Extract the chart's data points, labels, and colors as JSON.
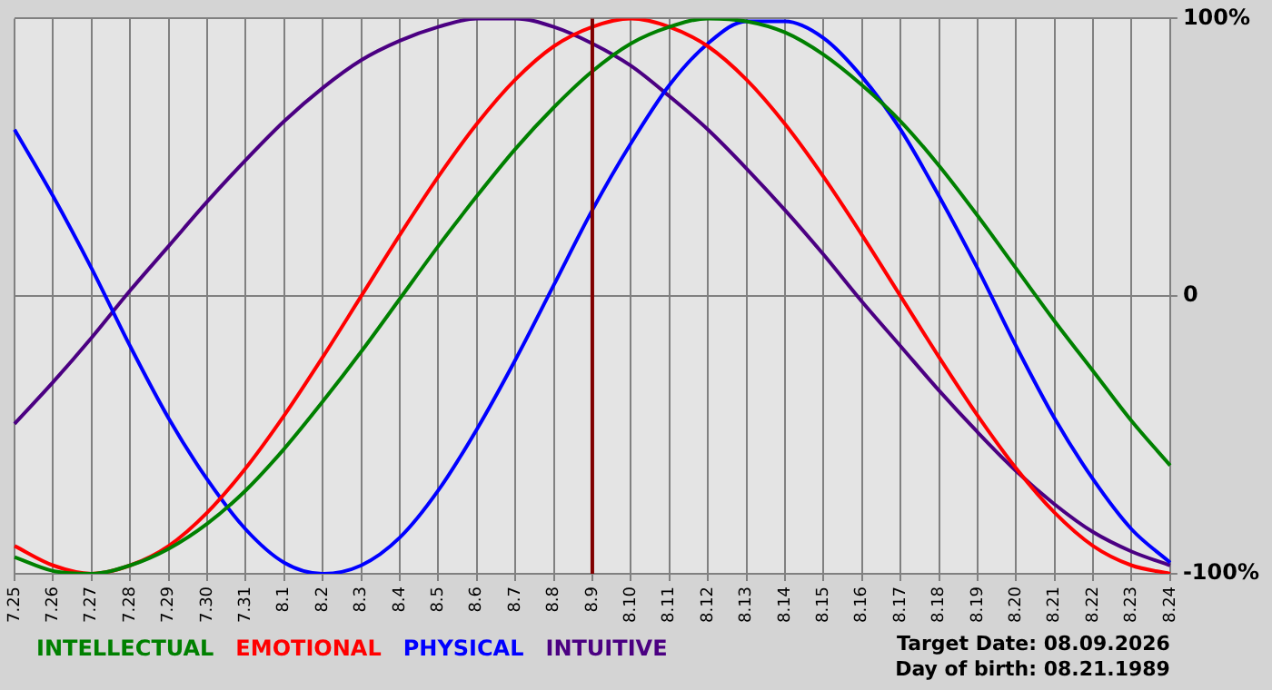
{
  "chart_data": {
    "type": "line",
    "categories": [
      "7.25",
      "7.26",
      "7.27",
      "7.28",
      "7.29",
      "7.30",
      "7.31",
      "8.1",
      "8.2",
      "8.3",
      "8.4",
      "8.5",
      "8.6",
      "8.7",
      "8.8",
      "8.9",
      "8.10",
      "8.11",
      "8.12",
      "8.13",
      "8.14",
      "8.15",
      "8.16",
      "8.17",
      "8.18",
      "8.19",
      "8.20",
      "8.21",
      "8.22",
      "8.23",
      "8.24"
    ],
    "series": [
      {
        "name": "INTELLECTUAL",
        "color": "#008000",
        "values": [
          -94,
          -99,
          -100,
          -97,
          -91,
          -82,
          -70,
          -55,
          -38,
          -20,
          -1,
          18,
          36,
          53,
          68,
          81,
          91,
          97,
          100,
          99,
          95,
          87,
          76,
          63,
          47,
          29,
          10,
          -9,
          -27,
          -45,
          -61
        ]
      },
      {
        "name": "EMOTIONAL",
        "color": "#ff0000",
        "values": [
          -90,
          -97,
          -100,
          -97,
          -90,
          -78,
          -62,
          -43,
          -22,
          0,
          22,
          43,
          62,
          78,
          90,
          97,
          100,
          97,
          90,
          78,
          62,
          43,
          22,
          0,
          -22,
          -43,
          -62,
          -78,
          -90,
          -97,
          -100
        ]
      },
      {
        "name": "PHYSICAL",
        "color": "#0000ff",
        "values": [
          60,
          36,
          10,
          -18,
          -44,
          -66,
          -84,
          -96,
          -100,
          -97,
          -87,
          -70,
          -48,
          -23,
          4,
          31,
          55,
          76,
          91,
          99,
          99,
          93,
          79,
          60,
          36,
          10,
          -18,
          -44,
          -66,
          -84,
          -96
        ]
      },
      {
        "name": "INTUITIVE",
        "color": "#4b0082",
        "values": [
          -46,
          -31,
          -15,
          2,
          18,
          34,
          49,
          63,
          75,
          85,
          92,
          97,
          100,
          100,
          97,
          91,
          83,
          72,
          60,
          46,
          31,
          15,
          -2,
          -18,
          -34,
          -49,
          -63,
          -75,
          -85,
          -92,
          -97
        ]
      }
    ],
    "ylim": [
      -100,
      100
    ],
    "yticks": [
      {
        "value": -100,
        "label": "-100%"
      },
      0,
      {
        "value": 100,
        "label": "100%"
      }
    ],
    "grid": true,
    "legend": "bottom left",
    "marker": "none",
    "line_style": "solid",
    "ref_lines": [
      {
        "axis": "x",
        "value": "8.9",
        "color": "#800000"
      }
    ],
    "annotations": [
      "Target Date: 08.09.2026",
      "Day of birth: 08.21.1989"
    ]
  }
}
